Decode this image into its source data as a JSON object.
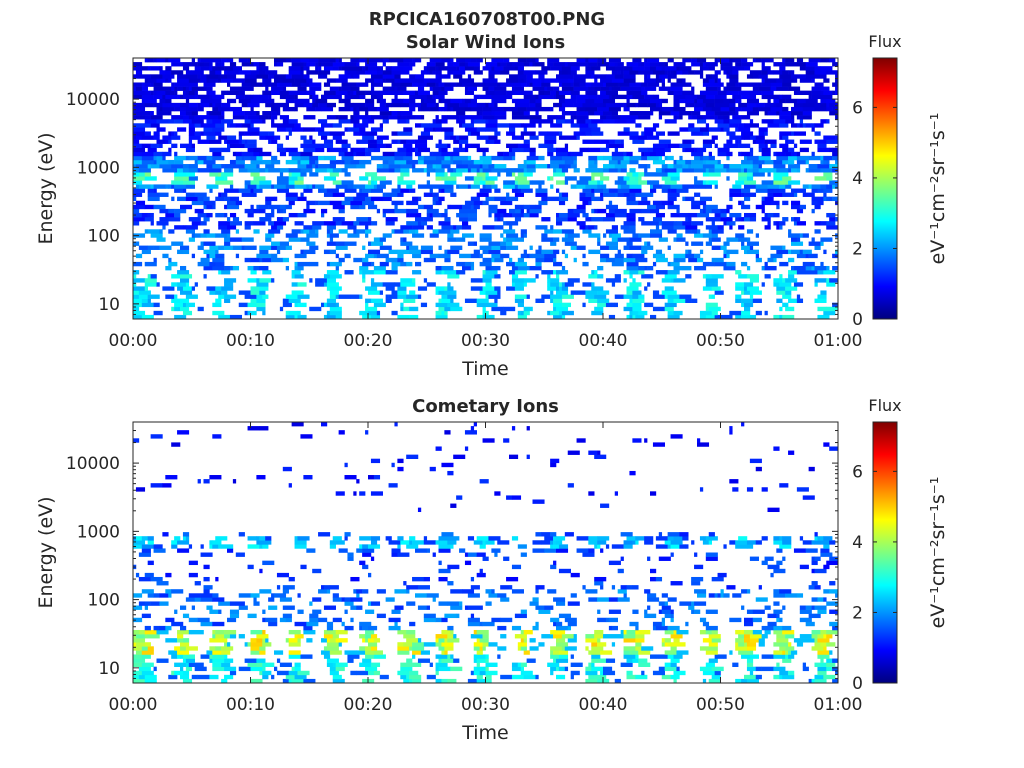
{
  "figure_title": "RPCICA160708T00.PNG",
  "colors": {
    "axis": "#262626",
    "colormap": [
      "#00007f",
      "#0000ff",
      "#007fff",
      "#00ffff",
      "#7fff7f",
      "#ffff00",
      "#ff7f00",
      "#ff0000",
      "#7f0000"
    ]
  },
  "chart_data": [
    {
      "type": "heatmap",
      "title": "Solar Wind Ions",
      "xlabel": "Time",
      "ylabel": "Energy (eV)",
      "x_ticks": [
        "00:00",
        "00:10",
        "00:20",
        "00:30",
        "00:40",
        "00:50",
        "01:00"
      ],
      "x_range_minutes": [
        0,
        60
      ],
      "y_scale": "log",
      "y_range": [
        6,
        40000
      ],
      "y_ticks": [
        {
          "value": 10,
          "label": "10"
        },
        {
          "value": 100,
          "label": "100"
        },
        {
          "value": 1000,
          "label": "1000"
        },
        {
          "value": 10000,
          "label": "10000"
        }
      ],
      "colorbar": {
        "title": "Flux",
        "label": "eV⁻¹cm⁻²sr⁻¹s⁻¹",
        "range": [
          0,
          7.4
        ],
        "ticks": [
          "0",
          "2",
          "4",
          "6"
        ]
      },
      "period_minutes": 3.2,
      "bands": [
        {
          "energy_range": [
            5000,
            40000
          ],
          "flux": 0.7,
          "occupancy": 0.75
        },
        {
          "energy_range": [
            1400,
            5000
          ],
          "flux": 1.0,
          "occupancy": 0.55
        },
        {
          "energy_range": [
            500,
            1400
          ],
          "flux": 1.9,
          "occupancy": 0.8
        },
        {
          "energy_range": [
            600,
            800
          ],
          "flux": 3.1,
          "occupancy": 0.9,
          "periodic": true
        },
        {
          "energy_range": [
            120,
            500
          ],
          "flux": 1.3,
          "occupancy": 0.5
        },
        {
          "energy_range": [
            30,
            120
          ],
          "flux": 1.8,
          "occupancy": 0.45
        },
        {
          "energy_range": [
            6,
            30
          ],
          "flux": 2.6,
          "occupancy": 0.75,
          "periodic": true
        }
      ]
    },
    {
      "type": "heatmap",
      "title": "Cometary Ions",
      "xlabel": "Time",
      "ylabel": "Energy (eV)",
      "x_ticks": [
        "00:00",
        "00:10",
        "00:20",
        "00:30",
        "00:40",
        "00:50",
        "01:00"
      ],
      "x_range_minutes": [
        0,
        60
      ],
      "y_scale": "log",
      "y_range": [
        6,
        40000
      ],
      "y_ticks": [
        {
          "value": 10,
          "label": "10"
        },
        {
          "value": 100,
          "label": "100"
        },
        {
          "value": 1000,
          "label": "1000"
        },
        {
          "value": 10000,
          "label": "10000"
        }
      ],
      "colorbar": {
        "title": "Flux",
        "label": "eV⁻¹cm⁻²sr⁻¹s⁻¹",
        "range": [
          0,
          7.4
        ],
        "ticks": [
          "0",
          "2",
          "4",
          "6"
        ]
      },
      "period_minutes": 3.2,
      "bands": [
        {
          "energy_range": [
            2000,
            40000
          ],
          "flux": 1.0,
          "occupancy": 0.04
        },
        {
          "energy_range": [
            400,
            1000
          ],
          "flux": 1.4,
          "occupancy": 0.18
        },
        {
          "energy_range": [
            600,
            800
          ],
          "flux": 2.4,
          "occupancy": 0.8,
          "periodic": true
        },
        {
          "energy_range": [
            150,
            400
          ],
          "flux": 1.3,
          "occupancy": 0.12
        },
        {
          "energy_range": [
            35,
            150
          ],
          "flux": 1.7,
          "occupancy": 0.3
        },
        {
          "energy_range": [
            15,
            35
          ],
          "flux": 4.2,
          "occupancy": 0.9,
          "periodic": true
        },
        {
          "energy_range": [
            6,
            15
          ],
          "flux": 2.8,
          "occupancy": 0.7,
          "periodic": true
        }
      ]
    }
  ]
}
